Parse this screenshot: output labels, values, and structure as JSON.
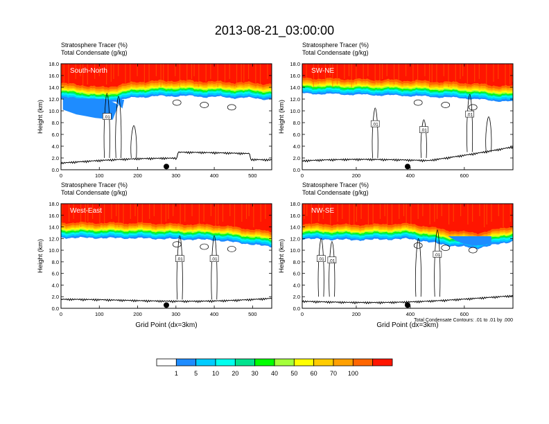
{
  "title": "2013-08-21_03:00:00",
  "colors": {
    "c0": "#ffffff",
    "c1": "#1e8cff",
    "c2": "#00ccff",
    "c3": "#00ffee",
    "c4": "#00e38e",
    "c5": "#00ff00",
    "c6": "#a4ff3a",
    "c7": "#ffff00",
    "c8": "#ffcc00",
    "c9": "#ffa000",
    "c10": "#ff6600",
    "c11": "#ff1500"
  },
  "chart_data": [
    {
      "type": "contour-cross-section",
      "panel_label": "South-North",
      "header_line1": "Stratosphere Tracer   (%)",
      "header_line2": "Total Condensate   (g/kg)",
      "ylabel": "Height (km)",
      "xlabel": "",
      "xlim": [
        0,
        550
      ],
      "ylim": [
        0,
        18
      ],
      "xticks": [
        "0",
        "100",
        "200",
        "300",
        "400",
        "500"
      ],
      "yticks": [
        "0.0",
        "2.0",
        "4.0",
        "6.0",
        "8.0",
        "10.0",
        "12.0",
        "14.0",
        "16.0",
        "18.0"
      ],
      "tropopause_km": 13.6,
      "tropopause_variation": [
        [
          0,
          13.3
        ],
        [
          50,
          13.1
        ],
        [
          100,
          12.6
        ],
        [
          150,
          13.0
        ],
        [
          200,
          13.6
        ],
        [
          300,
          13.8
        ],
        [
          400,
          13.6
        ],
        [
          500,
          13.4
        ],
        [
          550,
          13.2
        ]
      ],
      "contour_labels": [
        ".01"
      ],
      "marker_x": 275
    },
    {
      "type": "contour-cross-section",
      "panel_label": "SW-NE",
      "header_line1": "Stratosphere Tracer   (%)",
      "header_line2": "Total Condensate   (g/kg)",
      "ylabel": "Height (km)",
      "xlabel": "",
      "xlim": [
        0,
        780
      ],
      "ylim": [
        0,
        18
      ],
      "xticks": [
        "0",
        "200",
        "400",
        "600"
      ],
      "yticks": [
        "0.0",
        "2.0",
        "4.0",
        "6.0",
        "8.0",
        "10.0",
        "12.0",
        "14.0",
        "16.0",
        "18.0"
      ],
      "tropopause_km": 13.6,
      "tropopause_variation": [
        [
          0,
          14.2
        ],
        [
          200,
          14.0
        ],
        [
          400,
          13.8
        ],
        [
          600,
          13.4
        ],
        [
          700,
          13.0
        ],
        [
          780,
          12.8
        ]
      ],
      "contour_labels": [
        ".01",
        ".01",
        ".01"
      ],
      "marker_x": 390
    },
    {
      "type": "contour-cross-section",
      "panel_label": "West-East",
      "header_line1": "Stratosphere Tracer   (%)",
      "header_line2": "Total Condensate   (g/kg)",
      "ylabel": "Height (km)",
      "xlabel": "Grid Point (dx=3km)",
      "xlim": [
        0,
        550
      ],
      "ylim": [
        0,
        18
      ],
      "xticks": [
        "0",
        "100",
        "200",
        "300",
        "400",
        "500"
      ],
      "yticks": [
        "0.0",
        "2.0",
        "4.0",
        "6.0",
        "8.0",
        "10.0",
        "12.0",
        "14.0",
        "16.0",
        "18.0"
      ],
      "tropopause_km": 13.2,
      "tropopause_variation": [
        [
          0,
          13.4
        ],
        [
          200,
          13.3
        ],
        [
          400,
          13.0
        ],
        [
          480,
          12.4
        ],
        [
          550,
          11.8
        ]
      ],
      "contour_labels": [
        ".01",
        ".01"
      ],
      "marker_x": 275
    },
    {
      "type": "contour-cross-section",
      "panel_label": "NW-SE",
      "header_line1": "Stratosphere Tracer   (%)",
      "header_line2": "Total Condensate   (g/kg)",
      "ylabel": "Height (km)",
      "xlabel": "Grid Point (dx=3km)",
      "footnote": "Total Condensate Contours: .01 to .01 by .000",
      "xlim": [
        0,
        780
      ],
      "ylim": [
        0,
        18
      ],
      "xticks": [
        "0",
        "200",
        "400",
        "600"
      ],
      "yticks": [
        "0.0",
        "2.0",
        "4.0",
        "6.0",
        "8.0",
        "10.0",
        "12.0",
        "14.0",
        "16.0",
        "18.0"
      ],
      "tropopause_km": 13.0,
      "tropopause_variation": [
        [
          0,
          13.2
        ],
        [
          200,
          13.0
        ],
        [
          400,
          13.2
        ],
        [
          550,
          12.0
        ],
        [
          650,
          11.6
        ],
        [
          780,
          12.8
        ]
      ],
      "contour_labels": [
        ".01",
        ".01",
        ".01"
      ],
      "marker_x": 390
    }
  ],
  "colorbar": {
    "labels": [
      "1",
      "5",
      "10",
      "20",
      "30",
      "40",
      "50",
      "60",
      "70",
      "100"
    ],
    "colors": [
      "#ffffff",
      "#1e8cff",
      "#00ccff",
      "#00ffee",
      "#00e38e",
      "#00ff00",
      "#a4ff3a",
      "#ffff00",
      "#ffcc00",
      "#ffa000",
      "#ff6600",
      "#ff1500"
    ]
  }
}
